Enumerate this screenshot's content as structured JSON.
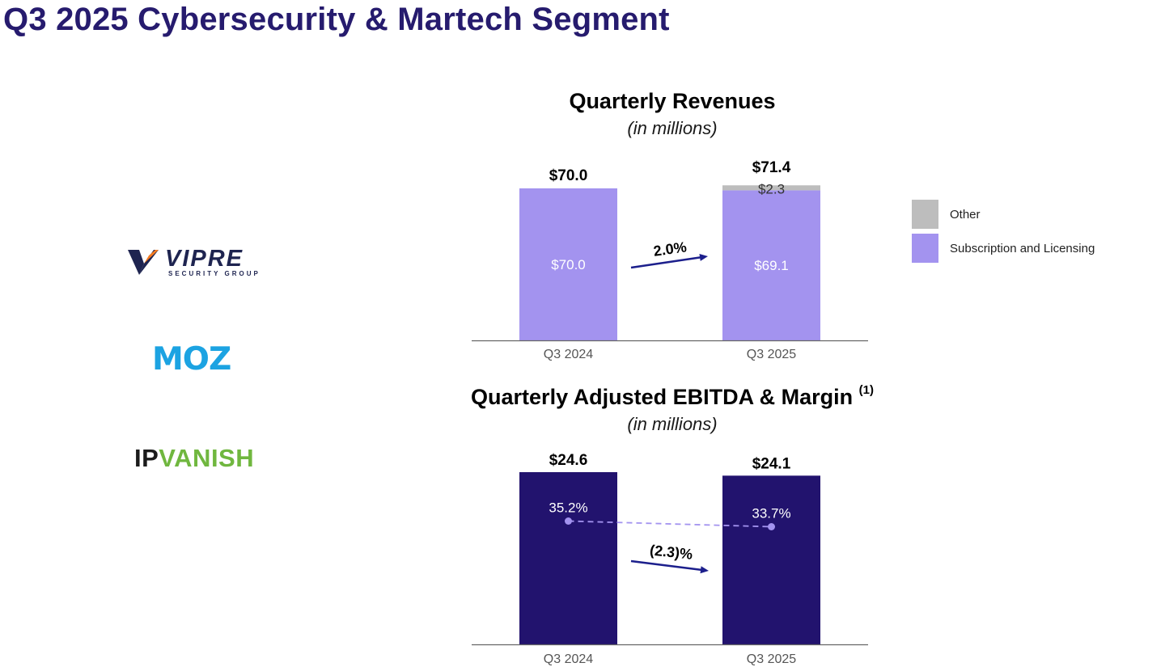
{
  "page": {
    "title": "Q3 2025 Cybersecurity & Martech Segment"
  },
  "logos": {
    "vipre": {
      "name": "VIPRE",
      "tagline": "SECURITY GROUP"
    },
    "moz": {
      "name": "MOZ"
    },
    "ipvanish": {
      "part1": "IP",
      "part2": "VANISH"
    }
  },
  "colors": {
    "title": "#261b6e",
    "subscription": "#a393ef",
    "other": "#bdbdbd",
    "ebitda": "#22136e",
    "arrow": "#1c1f8c",
    "margin_line": "#a393ef"
  },
  "legend": {
    "items": [
      {
        "label": "Other",
        "color": "#bdbdbd"
      },
      {
        "label": "Subscription and Licensing",
        "color": "#a393ef"
      }
    ]
  },
  "chart_data": [
    {
      "type": "bar",
      "stacked": true,
      "title": "Quarterly Revenues",
      "subtitle": "(in millions)",
      "categories": [
        "Q3 2024",
        "Q3 2025"
      ],
      "series": [
        {
          "name": "Subscription and Licensing",
          "values": [
            70.0,
            69.1
          ],
          "labels": [
            "$70.0",
            "$69.1"
          ]
        },
        {
          "name": "Other",
          "values": [
            0,
            2.3
          ],
          "labels": [
            "",
            "$2.3"
          ]
        }
      ],
      "totals": [
        70.0,
        71.4
      ],
      "total_labels": [
        "$70.0",
        "$71.4"
      ],
      "change_label": "2.0%",
      "ylim": [
        0,
        80
      ],
      "legend_position": "right"
    },
    {
      "type": "bar",
      "title": "Quarterly Adjusted EBITDA & Margin",
      "title_note": "(1)",
      "subtitle": "(in millions)",
      "categories": [
        "Q3 2024",
        "Q3 2025"
      ],
      "values": [
        24.6,
        24.1
      ],
      "value_labels": [
        "$24.6",
        "$24.1"
      ],
      "margin_values": [
        35.2,
        33.7
      ],
      "margin_labels": [
        "35.2%",
        "33.7%"
      ],
      "change_label": "(2.3)%",
      "ylim": [
        0,
        28
      ],
      "margin_ylim": [
        0,
        70
      ]
    }
  ]
}
